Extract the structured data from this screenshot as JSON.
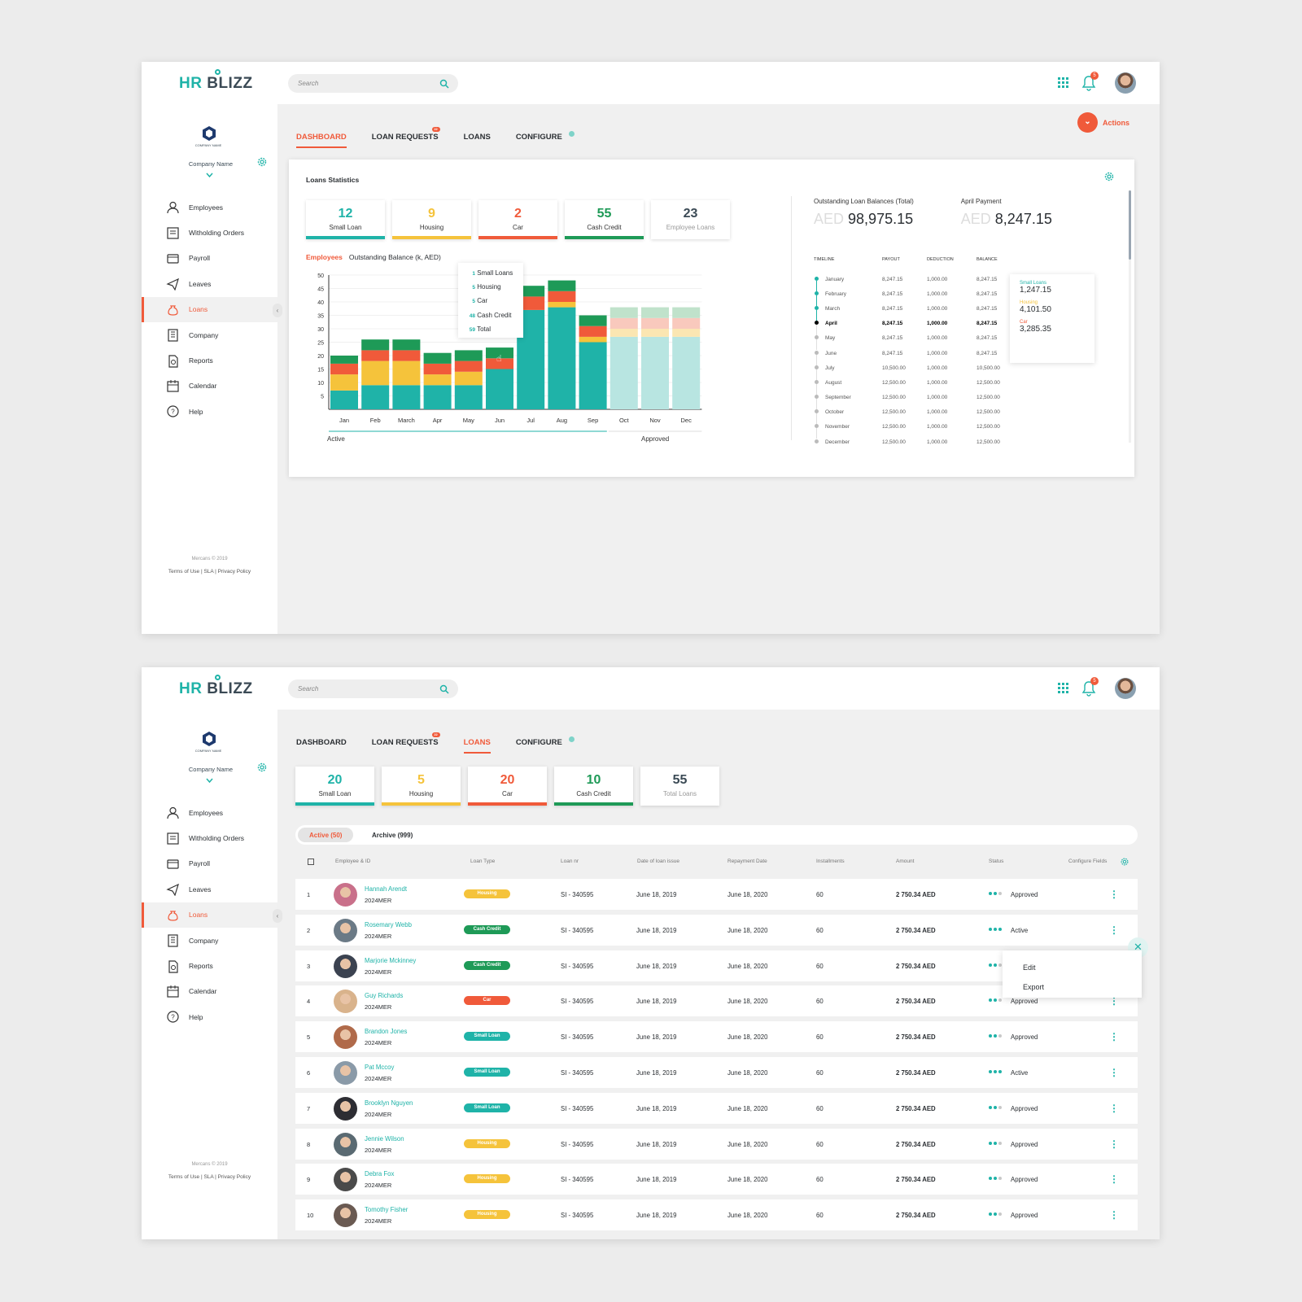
{
  "brand": {
    "hr": "HR",
    "blizz": "BLIZZ"
  },
  "company": {
    "name": "Company Name",
    "logo_text": "COMPANY NAME"
  },
  "search": {
    "placeholder": "Search"
  },
  "notifications": {
    "count": "5"
  },
  "nav": [
    "Employees",
    "Witholding Orders",
    "Payroll",
    "Leaves",
    "Loans",
    "Company",
    "Reports",
    "Calendar",
    "Help"
  ],
  "footer": {
    "copyright": "Mercans © 2019",
    "links": "Terms of Use | SLA | Privacy Policy"
  },
  "tabs": {
    "dashboard": "DASHBOARD",
    "loan_requests": "LOAN REQUESTS",
    "loans": "LOANS",
    "configure": "CONFIGURE",
    "badge": "22"
  },
  "actions_label": "Actions",
  "colors": {
    "teal": "#1fb3a8",
    "yellow": "#f5c33b",
    "red": "#f05a3a",
    "green": "#1e9a57",
    "slate": "#3b4a55"
  },
  "dashboard": {
    "title": "Loans Statistics",
    "stats": [
      {
        "value": "12",
        "label": "Small Loan"
      },
      {
        "value": "9",
        "label": "Housing"
      },
      {
        "value": "2",
        "label": "Car"
      },
      {
        "value": "55",
        "label": "Cash Credit"
      },
      {
        "value": "23",
        "label": "Employee Loans"
      }
    ],
    "legend_employees": "Employees",
    "legend_balance": "Outstanding Balance  (k, AED)",
    "outstanding_label": "Outstanding Loan Balances (Total)",
    "outstanding_value": "98,975.15",
    "april_label": "April Payment",
    "april_value": "8,247.15",
    "currency": "AED",
    "tooltip": [
      {
        "v": "1",
        "k": "Small Loans"
      },
      {
        "v": "5",
        "k": "Housing"
      },
      {
        "v": "5",
        "k": "Car"
      },
      {
        "v": "48",
        "k": "Cash Credit"
      },
      {
        "v": "59",
        "k": "Total"
      }
    ],
    "side_tooltip": [
      {
        "k": "Small Loans",
        "v": "1,247.15"
      },
      {
        "k": "Housing",
        "v": "4,101.50"
      },
      {
        "k": "Car",
        "v": "3,285.35"
      }
    ],
    "timeline_headers": [
      "TIMELINE",
      "PAYOUT",
      "DEDUCTION",
      "BALANCE"
    ],
    "timeline": [
      {
        "m": "January",
        "p": "8,247.15",
        "d": "1,000.00",
        "b": "8,247.15"
      },
      {
        "m": "February",
        "p": "8,247.15",
        "d": "1,000.00",
        "b": "8,247.15"
      },
      {
        "m": "March",
        "p": "8,247.15",
        "d": "1,000.00",
        "b": "8,247.15"
      },
      {
        "m": "April",
        "p": "8,247.15",
        "d": "1,000.00",
        "b": "8,247.15"
      },
      {
        "m": "May",
        "p": "8,247.15",
        "d": "1,000.00",
        "b": "8,247.15"
      },
      {
        "m": "June",
        "p": "8,247.15",
        "d": "1,000.00",
        "b": "8,247.15"
      },
      {
        "m": "July",
        "p": "10,500.00",
        "d": "1,000.00",
        "b": "10,500.00"
      },
      {
        "m": "August",
        "p": "12,500.00",
        "d": "1,000.00",
        "b": "12,500.00"
      },
      {
        "m": "September",
        "p": "12,500.00",
        "d": "1,000.00",
        "b": "12,500.00"
      },
      {
        "m": "October",
        "p": "12,500.00",
        "d": "1,000.00",
        "b": "12,500.00"
      },
      {
        "m": "November",
        "p": "12,500.00",
        "d": "1,000.00",
        "b": "12,500.00"
      },
      {
        "m": "December",
        "p": "12,500.00",
        "d": "1,000.00",
        "b": "12,500.00"
      }
    ]
  },
  "chart_data": {
    "type": "bar",
    "stacked": true,
    "categories": [
      "Jan",
      "Feb",
      "March",
      "Apr",
      "May",
      "Jun",
      "Jul",
      "Aug",
      "Sep",
      "Oct",
      "Nov",
      "Dec"
    ],
    "ylim": [
      0,
      50
    ],
    "yticks": [
      5,
      10,
      15,
      20,
      25,
      30,
      35,
      40,
      45,
      50
    ],
    "series": [
      {
        "name": "Small Loans",
        "values": [
          7,
          9,
          9,
          9,
          9,
          15,
          37,
          38,
          25,
          27,
          27,
          27
        ]
      },
      {
        "name": "Housing",
        "values": [
          6,
          9,
          9,
          4,
          5,
          0,
          0,
          2,
          2,
          3,
          3,
          3
        ]
      },
      {
        "name": "Car",
        "values": [
          4,
          4,
          4,
          4,
          4,
          4,
          5,
          4,
          4,
          4,
          4,
          4
        ]
      },
      {
        "name": "Cash Credit",
        "values": [
          3,
          4,
          4,
          4,
          4,
          4,
          4,
          4,
          4,
          4,
          4,
          4
        ]
      }
    ],
    "faded_from_index": 9,
    "bands": [
      "Active",
      "Approved"
    ]
  },
  "loans": {
    "stats": [
      {
        "value": "20",
        "label": "Small Loan"
      },
      {
        "value": "5",
        "label": "Housing"
      },
      {
        "value": "20",
        "label": "Car"
      },
      {
        "value": "10",
        "label": "Cash Credit"
      },
      {
        "value": "55",
        "label": "Total Loans"
      }
    ],
    "active_tab": "Active (50)",
    "archive_tab": "Archive (999)",
    "headers": [
      "Employee & ID",
      "Loan Type",
      "Loan nr",
      "Date of loan issue",
      "Repayment Date",
      "Installments",
      "Amount",
      "Status"
    ],
    "configure_fields": "Configure Fields",
    "menu": [
      "Edit",
      "Export"
    ],
    "rows": [
      {
        "n": "1",
        "name": "Hannah Arendt",
        "id": "2024MER",
        "type": "Housing",
        "loan": "SI - 340595",
        "issue": "June 18, 2019",
        "repay": "June 18, 2020",
        "inst": "60",
        "amount": "2 750.34 AED",
        "status": "Approved"
      },
      {
        "n": "2",
        "name": "Rosemary Webb",
        "id": "2024MER",
        "type": "Cash Credit",
        "loan": "SI - 340595",
        "issue": "June 18, 2019",
        "repay": "June 18, 2020",
        "inst": "60",
        "amount": "2 750.34 AED",
        "status": "Active"
      },
      {
        "n": "3",
        "name": "Marjorie Mckinney",
        "id": "2024MER",
        "type": "Cash Credit",
        "loan": "SI - 340595",
        "issue": "June 18, 2019",
        "repay": "June 18, 2020",
        "inst": "60",
        "amount": "2 750.34 AED",
        "status": ""
      },
      {
        "n": "4",
        "name": "Guy Richards",
        "id": "2024MER",
        "type": "Car",
        "loan": "SI - 340595",
        "issue": "June 18, 2019",
        "repay": "June 18, 2020",
        "inst": "60",
        "amount": "2 750.34 AED",
        "status": "Approved"
      },
      {
        "n": "5",
        "name": "Brandon Jones",
        "id": "2024MER",
        "type": "Small Loan",
        "loan": "SI - 340595",
        "issue": "June 18, 2019",
        "repay": "June 18, 2020",
        "inst": "60",
        "amount": "2 750.34 AED",
        "status": "Approved"
      },
      {
        "n": "6",
        "name": "Pat Mccoy",
        "id": "2024MER",
        "type": "Small Loan",
        "loan": "SI - 340595",
        "issue": "June 18, 2019",
        "repay": "June 18, 2020",
        "inst": "60",
        "amount": "2 750.34 AED",
        "status": "Active"
      },
      {
        "n": "7",
        "name": "Brooklyn Nguyen",
        "id": "2024MER",
        "type": "Small Loan",
        "loan": "SI - 340595",
        "issue": "June 18, 2019",
        "repay": "June 18, 2020",
        "inst": "60",
        "amount": "2 750.34 AED",
        "status": "Approved"
      },
      {
        "n": "8",
        "name": "Jennie Wilson",
        "id": "2024MER",
        "type": "Housing",
        "loan": "SI - 340595",
        "issue": "June 18, 2019",
        "repay": "June 18, 2020",
        "inst": "60",
        "amount": "2 750.34 AED",
        "status": "Approved"
      },
      {
        "n": "9",
        "name": "Debra Fox",
        "id": "2024MER",
        "type": "Housing",
        "loan": "SI - 340595",
        "issue": "June 18, 2019",
        "repay": "June 18, 2020",
        "inst": "60",
        "amount": "2 750.34 AED",
        "status": "Approved"
      },
      {
        "n": "10",
        "name": "Tomothy Fisher",
        "id": "2024MER",
        "type": "Housing",
        "loan": "SI - 340595",
        "issue": "June 18, 2019",
        "repay": "June 18, 2020",
        "inst": "60",
        "amount": "2 750.34 AED",
        "status": "Approved"
      }
    ]
  }
}
